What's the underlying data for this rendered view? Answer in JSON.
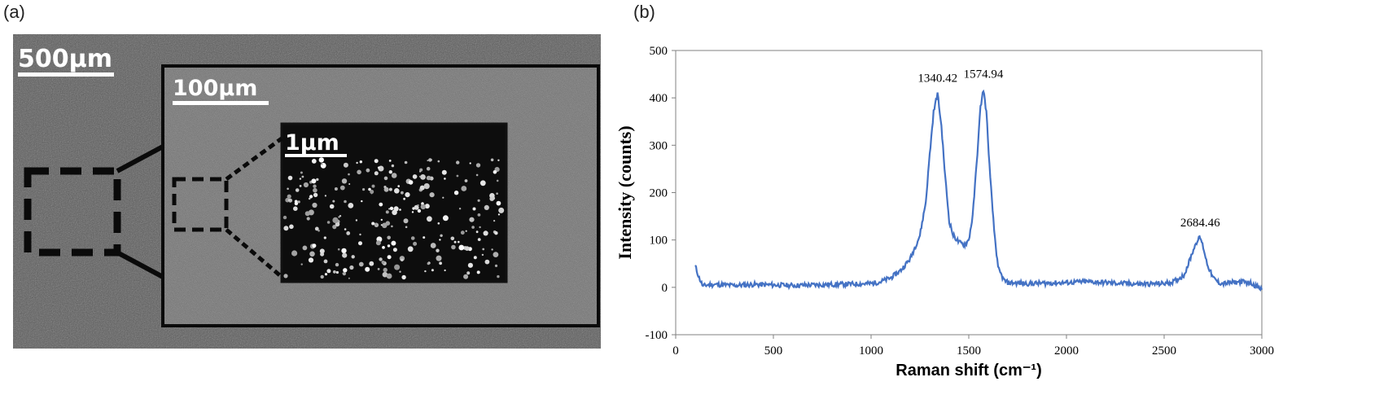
{
  "panels": {
    "a_label": "(a)",
    "b_label": "(b)"
  },
  "sem_image": {
    "scale_bars": {
      "outer": "500µm",
      "middle": "100µm",
      "inner": "1µm"
    }
  },
  "chart_data": {
    "type": "line",
    "xlabel": "Raman shift (cm⁻¹)",
    "ylabel": "Intensity (counts)",
    "xlim": [
      0,
      3000
    ],
    "ylim": [
      -100,
      500
    ],
    "x_ticks": [
      "0",
      "500",
      "1000",
      "1500",
      "2000",
      "2500",
      "3000"
    ],
    "y_ticks": [
      "-100",
      "0",
      "100",
      "200",
      "300",
      "400",
      "500"
    ],
    "grid": false,
    "series": [
      {
        "color": "#4472c4",
        "x": [
          100,
          120,
          140,
          160,
          200,
          300,
          400,
          500,
          600,
          700,
          800,
          900,
          1000,
          1050,
          1100,
          1150,
          1200,
          1250,
          1280,
          1300,
          1320,
          1340,
          1360,
          1380,
          1400,
          1420,
          1450,
          1480,
          1500,
          1520,
          1540,
          1560,
          1575,
          1590,
          1610,
          1630,
          1650,
          1680,
          1700,
          1800,
          1900,
          2000,
          2100,
          2200,
          2300,
          2400,
          2500,
          2550,
          2600,
          2620,
          2650,
          2670,
          2685,
          2700,
          2720,
          2750,
          2780,
          2800,
          2850,
          2900,
          2950,
          3000
        ],
        "y": [
          45,
          20,
          2,
          5,
          6,
          4,
          6,
          5,
          4,
          5,
          6,
          7,
          8,
          12,
          20,
          35,
          60,
          110,
          180,
          280,
          370,
          410,
          340,
          230,
          140,
          110,
          95,
          90,
          100,
          150,
          260,
          380,
          418,
          370,
          230,
          120,
          40,
          15,
          10,
          8,
          9,
          10,
          12,
          10,
          8,
          7,
          8,
          12,
          25,
          45,
          80,
          100,
          105,
          85,
          50,
          20,
          10,
          8,
          10,
          12,
          8,
          -5
        ]
      }
    ],
    "annotations": [
      {
        "x": 1340.42,
        "y": 410,
        "text": "1340.42"
      },
      {
        "x": 1574.94,
        "y": 418,
        "text": "1574.94"
      },
      {
        "x": 2684.46,
        "y": 105,
        "text": "2684.46"
      }
    ]
  }
}
